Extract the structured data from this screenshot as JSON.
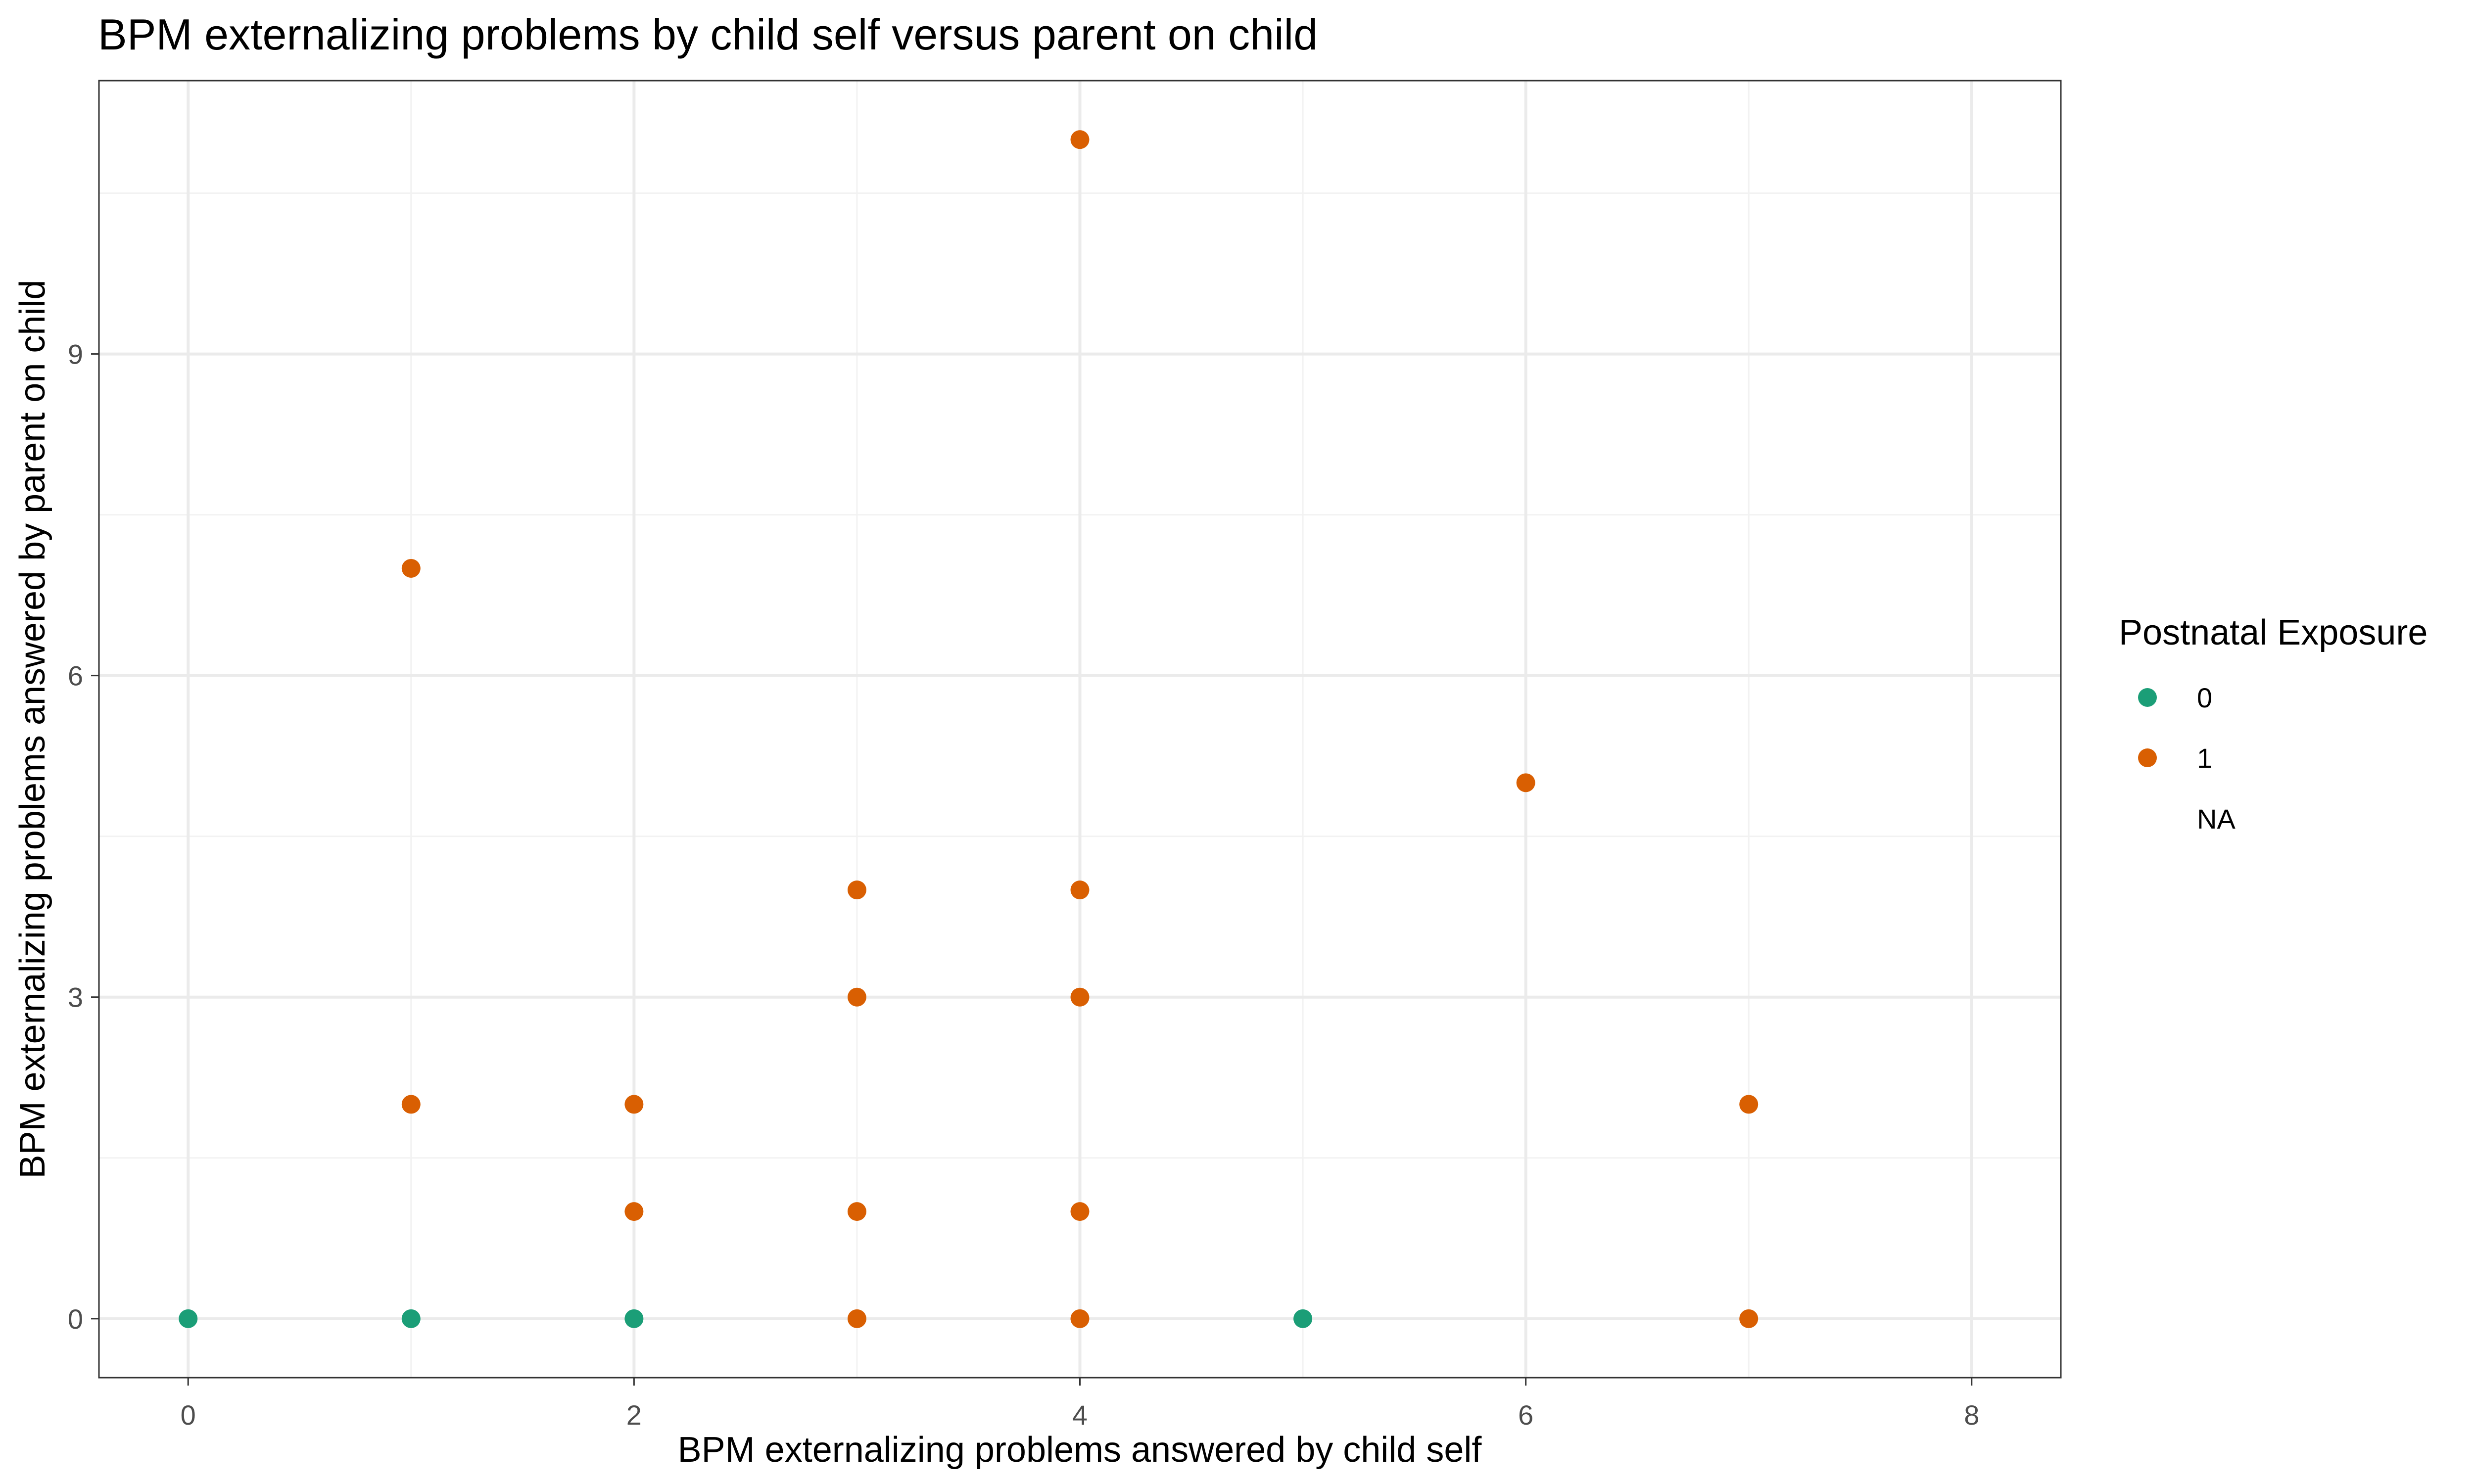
{
  "chart_data": {
    "type": "scatter",
    "title": "BPM externalizing problems by child self versus parent on child",
    "xlabel": "BPM externalizing problems answered by child self",
    "ylabel": "BPM externalizing problems answered by parent on child",
    "xlim": [
      -0.4,
      8.4
    ],
    "ylim": [
      -0.55,
      11.55
    ],
    "xticks": [
      0,
      2,
      4,
      6,
      8
    ],
    "yticks": [
      0,
      3,
      6,
      9
    ],
    "grid": true,
    "legend": {
      "title": "Postnatal Exposure",
      "position": "right",
      "entries": [
        {
          "label": "0",
          "color": "#1b9e77"
        },
        {
          "label": "1",
          "color": "#d95f02"
        },
        {
          "label": "NA",
          "color": null
        }
      ]
    },
    "series": [
      {
        "name": "0",
        "color": "#1b9e77",
        "points": [
          {
            "x": 0,
            "y": 0
          },
          {
            "x": 1,
            "y": 0
          },
          {
            "x": 2,
            "y": 0
          },
          {
            "x": 5,
            "y": 0
          }
        ]
      },
      {
        "name": "1",
        "color": "#d95f02",
        "points": [
          {
            "x": 1,
            "y": 7
          },
          {
            "x": 1,
            "y": 2
          },
          {
            "x": 2,
            "y": 2
          },
          {
            "x": 2,
            "y": 1
          },
          {
            "x": 3,
            "y": 4
          },
          {
            "x": 3,
            "y": 3
          },
          {
            "x": 3,
            "y": 1
          },
          {
            "x": 3,
            "y": 0
          },
          {
            "x": 4,
            "y": 11
          },
          {
            "x": 4,
            "y": 4
          },
          {
            "x": 4,
            "y": 3
          },
          {
            "x": 4,
            "y": 1
          },
          {
            "x": 4,
            "y": 0
          },
          {
            "x": 6,
            "y": 5
          },
          {
            "x": 7,
            "y": 2
          },
          {
            "x": 7,
            "y": 0
          }
        ]
      }
    ]
  }
}
